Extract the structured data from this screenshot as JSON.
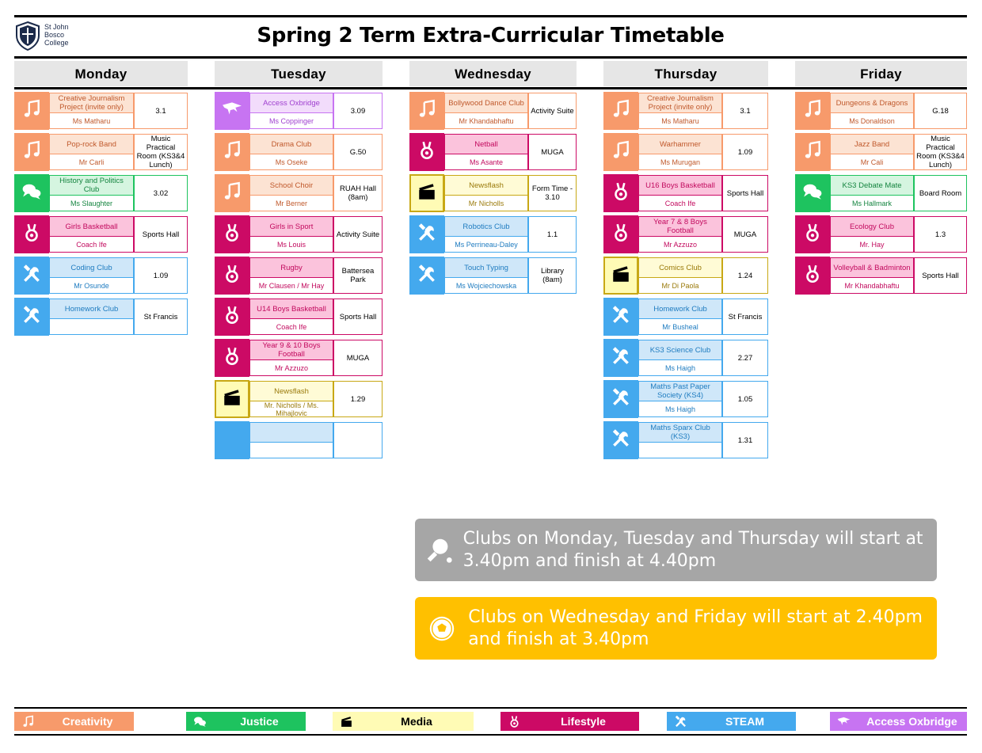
{
  "header": {
    "logo_text": [
      "St John",
      "Bosco",
      "College"
    ],
    "title": "Spring 2 Term Extra-Curricular Timetable"
  },
  "categories": {
    "creativity": {
      "label": "Creativity",
      "icon": "music-note-icon",
      "dark": "#f79a6b",
      "light": "#fce3d3",
      "border": "#f79a6b",
      "text": "#c0592c"
    },
    "justice": {
      "label": "Justice",
      "icon": "speech-bubbles-icon",
      "dark": "#1ec35f",
      "light": "#d5f5e0",
      "border": "#1ec35f",
      "text": "#14843f"
    },
    "media": {
      "label": "Media",
      "icon": "clapperboard-icon",
      "dark": "#fffbb5",
      "light": "#fffbd6",
      "border": "#c8a815",
      "text": "#9a7a0a"
    },
    "lifestyle": {
      "label": "Lifestyle",
      "icon": "medal-icon",
      "dark": "#cc0a65",
      "light": "#fbc3dc",
      "border": "#cc0a65",
      "text": "#c20a5e"
    },
    "steam": {
      "label": "STEAM",
      "icon": "tools-icon",
      "dark": "#44a9ee",
      "light": "#cfe7f9",
      "border": "#44a9ee",
      "text": "#1f7cc0"
    },
    "access": {
      "label": "Access Oxbridge",
      "icon": "oxbridge-icon",
      "dark": "#c774f2",
      "light": "#f2dcfb",
      "border": "#c774f2",
      "text": "#a040d0"
    }
  },
  "days": [
    {
      "name": "Monday",
      "clubs": [
        {
          "cat": "creativity",
          "name": "Creative Journalism Project (invite only)",
          "teacher": "Ms Matharu",
          "room": "3.1"
        },
        {
          "cat": "creativity",
          "name": "Pop-rock Band",
          "teacher": "Mr Carli",
          "room": "Music Practical Room (KS3&4 Lunch)"
        },
        {
          "cat": "justice",
          "name": "History and Politics Club",
          "teacher": "Ms Slaughter",
          "room": "3.02"
        },
        {
          "cat": "lifestyle",
          "name": "Girls Basketball",
          "teacher": "Coach Ife",
          "room": "Sports Hall"
        },
        {
          "cat": "steam",
          "name": "Coding Club",
          "teacher": "Mr Osunde",
          "room": "1.09"
        },
        {
          "cat": "steam",
          "name": "Homework Club",
          "teacher": "",
          "room": "St Francis"
        }
      ]
    },
    {
      "name": "Tuesday",
      "clubs": [
        {
          "cat": "access",
          "name": "Access Oxbridge",
          "teacher": "Ms Coppinger",
          "room": "3.09"
        },
        {
          "cat": "creativity",
          "name": "Drama Club",
          "teacher": "Ms Oseke",
          "room": "G.50"
        },
        {
          "cat": "creativity",
          "name": "School Choir",
          "teacher": "Mr Berner",
          "room": "RUAH Hall (8am)"
        },
        {
          "cat": "lifestyle",
          "name": "Girls in Sport",
          "teacher": "Ms Louis",
          "room": "Activity Suite"
        },
        {
          "cat": "lifestyle",
          "name": "Rugby",
          "teacher": "Mr Clausen / Mr Hay",
          "room": "Battersea Park"
        },
        {
          "cat": "lifestyle",
          "name": "U14 Boys Basketball",
          "teacher": "Coach Ife",
          "room": "Sports Hall"
        },
        {
          "cat": "lifestyle",
          "name": "Year 9 & 10 Boys Football",
          "teacher": "Mr Azzuzo",
          "room": "MUGA"
        },
        {
          "cat": "media",
          "name": "Newsflash",
          "teacher": "Mr. Nicholls / Ms. Mihajlovic",
          "room": "1.29"
        },
        {
          "cat": "steam",
          "name": "",
          "teacher": "",
          "room": "",
          "blank": true
        }
      ]
    },
    {
      "name": "Wednesday",
      "clubs": [
        {
          "cat": "creativity",
          "name": "Bollywood Dance Club",
          "teacher": "Mr Khandabhaftu",
          "room": "Activity Suite"
        },
        {
          "cat": "lifestyle",
          "name": "Netball",
          "teacher": "Ms Asante",
          "room": "MUGA"
        },
        {
          "cat": "media",
          "name": "Newsflash",
          "teacher": "Mr Nicholls",
          "room": "Form Time - 3.10"
        },
        {
          "cat": "steam",
          "name": "Robotics Club",
          "teacher": "Ms Perrineau-Daley",
          "room": "1.1"
        },
        {
          "cat": "steam",
          "name": "Touch Typing",
          "teacher": "Ms Wojciechowska",
          "room": "Library (8am)"
        }
      ]
    },
    {
      "name": "Thursday",
      "clubs": [
        {
          "cat": "creativity",
          "name": "Creative Journalism Project (invite only)",
          "teacher": "Ms Matharu",
          "room": "3.1"
        },
        {
          "cat": "creativity",
          "name": "Warhammer",
          "teacher": "Ms Murugan",
          "room": "1.09"
        },
        {
          "cat": "lifestyle",
          "name": "U16 Boys Basketball",
          "teacher": "Coach Ife",
          "room": "Sports Hall"
        },
        {
          "cat": "lifestyle",
          "name": "Year 7 & 8 Boys Football",
          "teacher": "Mr Azzuzo",
          "room": "MUGA"
        },
        {
          "cat": "media",
          "name": "Comics Club",
          "teacher": "Mr Di Paola",
          "room": "1.24"
        },
        {
          "cat": "steam",
          "name": "Homework Club",
          "teacher": "Mr Busheal",
          "room": "St Francis"
        },
        {
          "cat": "steam",
          "name": "KS3 Science Club",
          "teacher": "Ms Haigh",
          "room": "2.27"
        },
        {
          "cat": "steam",
          "name": "Maths Past Paper Society (KS4)",
          "teacher": "Ms Haigh",
          "room": "1.05"
        },
        {
          "cat": "steam",
          "name": "Maths Sparx Club (KS3)",
          "teacher": "",
          "room": "1.31"
        }
      ]
    },
    {
      "name": "Friday",
      "clubs": [
        {
          "cat": "creativity",
          "name": "Dungeons & Dragons",
          "teacher": "Ms Donaldson",
          "room": "G.18"
        },
        {
          "cat": "creativity",
          "name": "Jazz Band",
          "teacher": "Mr Cali",
          "room": "Music Practical Room (KS3&4 Lunch)"
        },
        {
          "cat": "justice",
          "name": "KS3 Debate Mate",
          "teacher": "Ms Hallmark",
          "room": "Board Room"
        },
        {
          "cat": "lifestyle",
          "name": "Ecology Club",
          "teacher": "Mr. Hay",
          "room": "1.3"
        },
        {
          "cat": "lifestyle",
          "name": "Volleyball & Badminton",
          "teacher": "Mr Khandabhaftu",
          "room": "Sports Hall"
        }
      ]
    }
  ],
  "info_boxes": [
    {
      "text": "Clubs on Monday, Tuesday and Thursday will start at 3.40pm and finish at 4.40pm",
      "color": "#a6a6a6",
      "icon": "table-tennis-icon"
    },
    {
      "text": "Clubs on Wednesday and Friday will start at 2.40pm and finish at 3.40pm",
      "color": "#ffc000",
      "icon": "football-icon"
    }
  ],
  "legend": [
    "creativity",
    "justice",
    "media",
    "lifestyle",
    "steam",
    "access"
  ]
}
